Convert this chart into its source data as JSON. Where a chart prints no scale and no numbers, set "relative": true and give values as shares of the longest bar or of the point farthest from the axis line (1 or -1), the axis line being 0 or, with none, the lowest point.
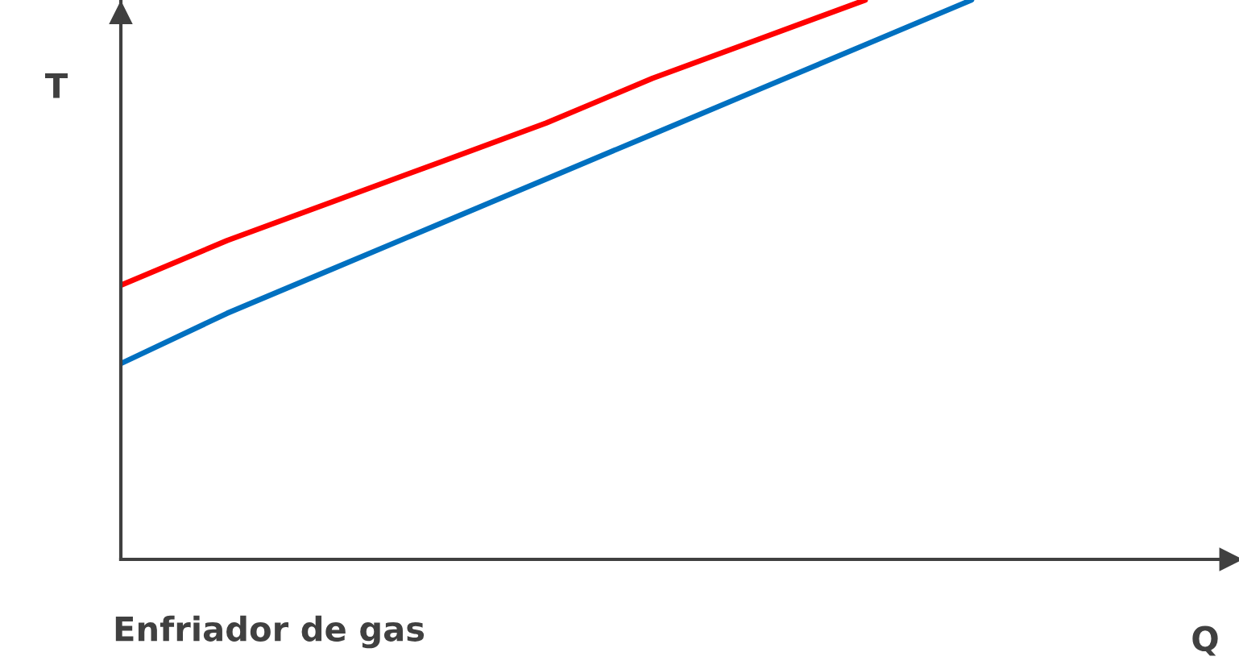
{
  "chart_data": {
    "type": "line",
    "title": "Enfriador de gas",
    "xlabel": "Q",
    "ylabel": "T",
    "relative": true,
    "categories": [
      null,
      null,
      null,
      null,
      null,
      null,
      null,
      null,
      null,
      null,
      null
    ],
    "series": [
      {
        "color": "#ff0000",
        "values": [
          0.49,
          0.57,
          0.64,
          0.71,
          0.78,
          0.86,
          0.93,
          1.0,
          null,
          null,
          null
        ]
      },
      {
        "color": "#0070c0",
        "values": [
          0.35,
          0.44,
          0.52,
          0.6,
          0.68,
          0.76,
          0.84,
          0.92,
          1.0,
          null,
          null
        ]
      }
    ],
    "legend": false,
    "marker": "none",
    "line_style": "solid"
  }
}
